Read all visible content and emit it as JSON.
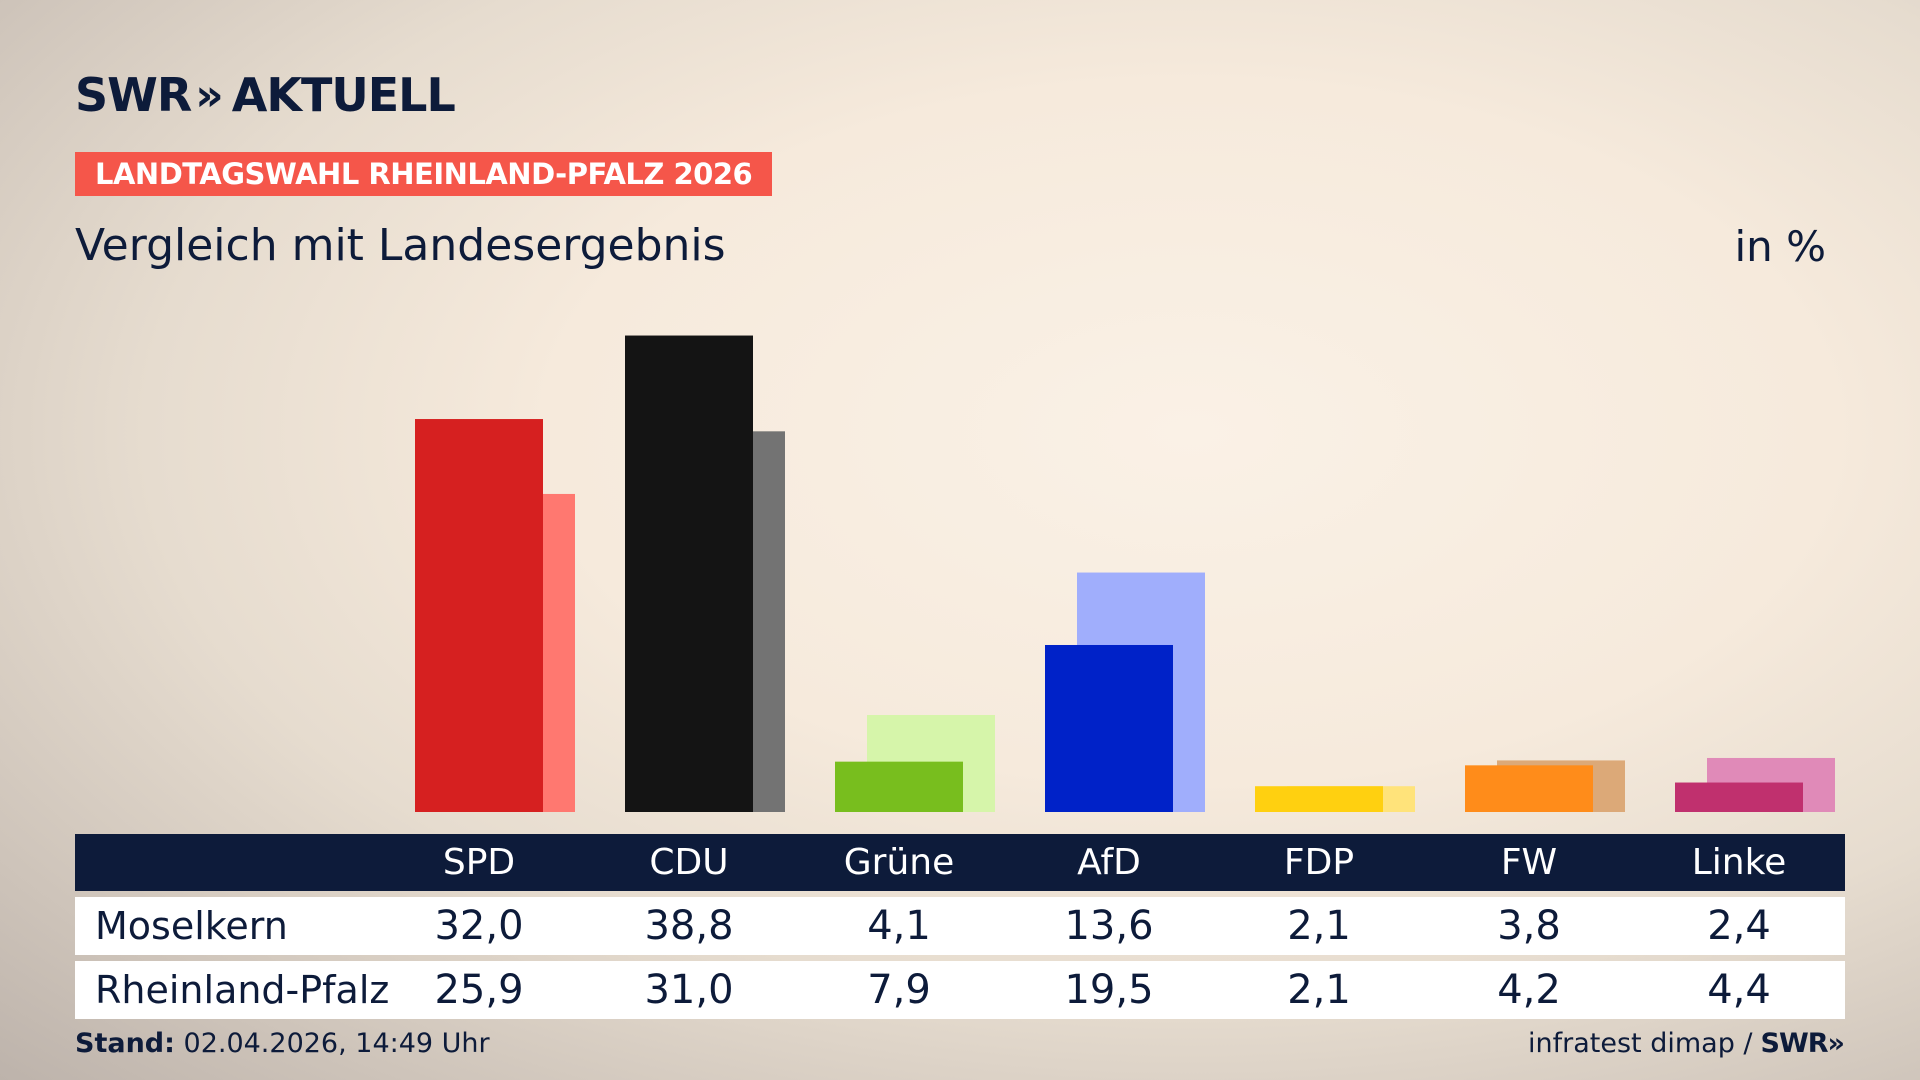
{
  "header": {
    "logo_text": "SWR",
    "logo_chevrons": "»",
    "logo_suffix": "AKTUELL",
    "badge": "LANDTAGSWAHL RHEINLAND-PFALZ 2026",
    "subtitle": "Vergleich mit Landesergebnis",
    "unit": "in %"
  },
  "table": {
    "row_labels": [
      "Moselkern",
      "Rheinland-Pfalz"
    ]
  },
  "footer": {
    "stand_label": "Stand:",
    "stand_value": "02.04.2026, 14:49 Uhr",
    "source": "infratest dimap /",
    "source_logo": "SWR»"
  },
  "chart_data": {
    "type": "bar",
    "categories": [
      "SPD",
      "CDU",
      "Grüne",
      "AfD",
      "FDP",
      "FW",
      "Linke"
    ],
    "series": [
      {
        "name": "Moselkern",
        "values": [
          32.0,
          38.8,
          4.1,
          13.6,
          2.1,
          3.8,
          2.4
        ],
        "display": [
          "32,0",
          "38,8",
          "4,1",
          "13,6",
          "2,1",
          "3,8",
          "2,4"
        ]
      },
      {
        "name": "Rheinland-Pfalz",
        "values": [
          25.9,
          31.0,
          7.9,
          19.5,
          2.1,
          4.2,
          4.4
        ],
        "display": [
          "25,9",
          "31,0",
          "7,9",
          "19,5",
          "2,1",
          "4,2",
          "4,4"
        ]
      }
    ],
    "colors_primary": [
      "#d62020",
      "#141414",
      "#78be1e",
      "#0022c8",
      "#ffd010",
      "#ff8c1a",
      "#c0306e"
    ],
    "colors_secondary": [
      "#ff7870",
      "#737373",
      "#d6f5aa",
      "#a0aefc",
      "#ffe37a",
      "#dca978",
      "#e08ab8"
    ],
    "ylim": [
      0,
      40
    ],
    "grid": false,
    "legend": "table-below"
  }
}
